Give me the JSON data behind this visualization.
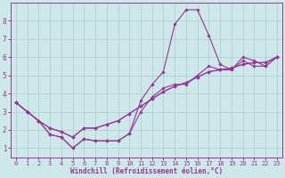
{
  "background_color": "#cce8e8",
  "grid_color": "#aacccc",
  "line_color": "#993399",
  "marker_color": "#993399",
  "xlim": [
    -0.5,
    23.5
  ],
  "ylim": [
    0.5,
    9.0
  ],
  "xticks": [
    0,
    1,
    2,
    3,
    4,
    5,
    6,
    7,
    8,
    9,
    10,
    11,
    12,
    13,
    14,
    15,
    16,
    17,
    18,
    19,
    20,
    21,
    22,
    23
  ],
  "yticks": [
    1,
    2,
    3,
    4,
    5,
    6,
    7,
    8
  ],
  "xlabel": "Windchill (Refroidissement éolien,°C)",
  "x": [
    0,
    1,
    2,
    3,
    4,
    5,
    6,
    7,
    8,
    9,
    10,
    11,
    12,
    13,
    14,
    15,
    16,
    17,
    18,
    19,
    20,
    21,
    22,
    23
  ],
  "series1": [
    3.5,
    3.0,
    2.5,
    1.75,
    1.6,
    1.0,
    1.5,
    1.4,
    1.4,
    1.4,
    1.8,
    3.6,
    4.5,
    5.2,
    7.8,
    8.6,
    8.6,
    7.2,
    5.6,
    5.3,
    6.0,
    5.8,
    5.5,
    6.0
  ],
  "series2": [
    3.5,
    3.0,
    2.5,
    1.75,
    1.6,
    1.0,
    1.5,
    1.4,
    1.4,
    1.4,
    1.8,
    3.0,
    3.8,
    4.3,
    4.5,
    4.5,
    5.0,
    5.5,
    5.3,
    5.3,
    5.8,
    5.5,
    5.5,
    6.0
  ],
  "series3": [
    3.5,
    3.0,
    2.5,
    2.1,
    1.9,
    1.6,
    2.1,
    2.1,
    2.3,
    2.5,
    2.9,
    3.3,
    3.7,
    4.1,
    4.4,
    4.6,
    4.9,
    5.2,
    5.3,
    5.4,
    5.6,
    5.7,
    5.7,
    6.0
  ],
  "series4": [
    3.5,
    3.0,
    2.5,
    2.1,
    1.9,
    1.6,
    2.1,
    2.1,
    2.3,
    2.5,
    2.9,
    3.3,
    3.7,
    4.1,
    4.4,
    4.6,
    4.9,
    5.2,
    5.3,
    5.4,
    5.6,
    5.7,
    5.7,
    6.0
  ],
  "tick_fontsize": 5,
  "label_fontsize": 5.5
}
